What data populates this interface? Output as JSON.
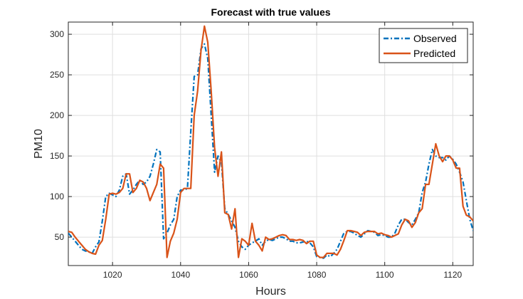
{
  "chart_data": {
    "type": "line",
    "title": "Forecast with true values",
    "xlabel": "Hours",
    "ylabel": "PM10",
    "xlim": [
      1007,
      1126
    ],
    "ylim": [
      15,
      315
    ],
    "xticks": [
      1020,
      1040,
      1060,
      1080,
      1100,
      1120
    ],
    "yticks": [
      50,
      100,
      150,
      200,
      250,
      300
    ],
    "grid": true,
    "legend_position": "top-right",
    "series": [
      {
        "name": "Observed",
        "color": "#0072BD",
        "style": "dash-dot",
        "x": [
          1007,
          1008,
          1009,
          1010,
          1011,
          1012,
          1013,
          1014,
          1015,
          1016,
          1017,
          1018,
          1019,
          1020,
          1021,
          1022,
          1023,
          1024,
          1025,
          1026,
          1027,
          1028,
          1029,
          1030,
          1031,
          1032,
          1033,
          1034,
          1035,
          1036,
          1037,
          1038,
          1039,
          1040,
          1041,
          1042,
          1043,
          1044,
          1045,
          1046,
          1047,
          1048,
          1049,
          1050,
          1051,
          1052,
          1053,
          1054,
          1055,
          1056,
          1057,
          1058,
          1059,
          1060,
          1061,
          1062,
          1063,
          1064,
          1065,
          1066,
          1067,
          1068,
          1069,
          1070,
          1071,
          1072,
          1073,
          1074,
          1075,
          1076,
          1077,
          1078,
          1079,
          1080,
          1081,
          1082,
          1083,
          1084,
          1085,
          1086,
          1087,
          1088,
          1089,
          1090,
          1091,
          1092,
          1093,
          1094,
          1095,
          1096,
          1097,
          1098,
          1099,
          1100,
          1101,
          1102,
          1103,
          1104,
          1105,
          1106,
          1107,
          1108,
          1109,
          1110,
          1111,
          1112,
          1113,
          1114,
          1115,
          1116,
          1117,
          1118,
          1119,
          1120,
          1121,
          1122,
          1123,
          1124,
          1125,
          1126
        ],
        "y": [
          55,
          50,
          45,
          40,
          35,
          33,
          32,
          30,
          38,
          44,
          70,
          100,
          104,
          102,
          100,
          108,
          125,
          128,
          103,
          108,
          115,
          120,
          115,
          118,
          125,
          140,
          158,
          155,
          48,
          55,
          65,
          72,
          100,
          108,
          108,
          110,
          180,
          248,
          250,
          282,
          288,
          270,
          200,
          130,
          150,
          142,
          85,
          78,
          70,
          62,
          45,
          38,
          35,
          40,
          43,
          45,
          48,
          40,
          45,
          47,
          46,
          48,
          50,
          50,
          48,
          45,
          45,
          43,
          43,
          44,
          45,
          43,
          38,
          26,
          25,
          24,
          28,
          26,
          30,
          35,
          45,
          55,
          57,
          57,
          55,
          52,
          50,
          54,
          58,
          57,
          56,
          52,
          53,
          52,
          50,
          50,
          55,
          65,
          72,
          72,
          68,
          65,
          72,
          80,
          105,
          118,
          140,
          158,
          150,
          148,
          148,
          145,
          150,
          146,
          140,
          130,
          118,
          95,
          72,
          58
        ]
      },
      {
        "name": "Predicted",
        "color": "#D95319",
        "style": "solid",
        "x": [
          1007,
          1008,
          1009,
          1010,
          1011,
          1012,
          1013,
          1014,
          1015,
          1016,
          1017,
          1018,
          1019,
          1020,
          1021,
          1022,
          1023,
          1024,
          1025,
          1026,
          1027,
          1028,
          1029,
          1030,
          1031,
          1032,
          1033,
          1034,
          1035,
          1036,
          1037,
          1038,
          1039,
          1040,
          1041,
          1042,
          1043,
          1044,
          1045,
          1046,
          1047,
          1048,
          1049,
          1050,
          1051,
          1052,
          1053,
          1054,
          1055,
          1056,
          1057,
          1058,
          1059,
          1060,
          1061,
          1062,
          1063,
          1064,
          1065,
          1066,
          1067,
          1068,
          1069,
          1070,
          1071,
          1072,
          1073,
          1074,
          1075,
          1076,
          1077,
          1078,
          1079,
          1080,
          1081,
          1082,
          1083,
          1084,
          1085,
          1086,
          1087,
          1088,
          1089,
          1090,
          1091,
          1092,
          1093,
          1094,
          1095,
          1096,
          1097,
          1098,
          1099,
          1100,
          1101,
          1102,
          1103,
          1104,
          1105,
          1106,
          1107,
          1108,
          1109,
          1110,
          1111,
          1112,
          1113,
          1114,
          1115,
          1116,
          1117,
          1118,
          1119,
          1120,
          1121,
          1122,
          1123,
          1124,
          1125,
          1126
        ],
        "y": [
          57,
          56,
          50,
          45,
          40,
          35,
          32,
          30,
          29,
          40,
          46,
          72,
          103,
          104,
          103,
          105,
          110,
          128,
          128,
          105,
          110,
          120,
          118,
          110,
          95,
          105,
          115,
          140,
          135,
          25,
          45,
          55,
          72,
          105,
          110,
          110,
          110,
          200,
          230,
          280,
          310,
          290,
          230,
          160,
          125,
          155,
          80,
          78,
          60,
          85,
          25,
          48,
          45,
          40,
          67,
          45,
          40,
          33,
          50,
          47,
          48,
          50,
          52,
          53,
          52,
          47,
          47,
          46,
          47,
          46,
          42,
          45,
          45,
          28,
          25,
          25,
          30,
          30,
          30,
          28,
          35,
          46,
          58,
          58,
          57,
          56,
          52,
          56,
          57,
          57,
          57,
          54,
          55,
          53,
          52,
          50,
          52,
          54,
          65,
          72,
          70,
          62,
          68,
          80,
          85,
          115,
          115,
          140,
          165,
          150,
          143,
          150,
          150,
          145,
          135,
          135,
          88,
          77,
          75,
          70
        ]
      }
    ]
  }
}
